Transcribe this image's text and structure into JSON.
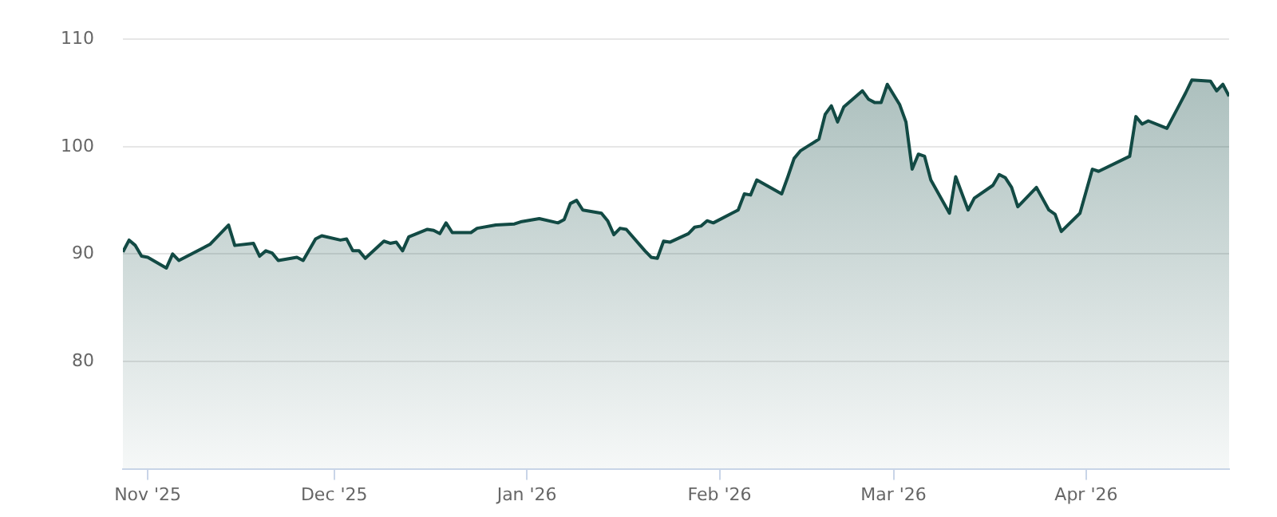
{
  "chart_data": {
    "type": "area",
    "x": [
      "2025-10-28",
      "2025-10-29",
      "2025-10-30",
      "2025-10-31",
      "2025-11-01",
      "2025-11-04",
      "2025-11-05",
      "2025-11-06",
      "2025-11-07",
      "2025-11-11",
      "2025-11-14",
      "2025-11-15",
      "2025-11-18",
      "2025-11-19",
      "2025-11-20",
      "2025-11-21",
      "2025-11-22",
      "2025-11-25",
      "2025-11-26",
      "2025-11-28",
      "2025-11-29",
      "2025-12-02",
      "2025-12-03",
      "2025-12-04",
      "2025-12-05",
      "2025-12-06",
      "2025-12-09",
      "2025-12-10",
      "2025-12-11",
      "2025-12-12",
      "2025-12-13",
      "2025-12-16",
      "2025-12-17",
      "2025-12-18",
      "2025-12-19",
      "2025-12-20",
      "2025-12-23",
      "2025-12-24",
      "2025-12-27",
      "2025-12-30",
      "2025-12-31",
      "2026-01-03",
      "2026-01-06",
      "2026-01-07",
      "2026-01-08",
      "2026-01-09",
      "2026-01-10",
      "2026-01-13",
      "2026-01-14",
      "2026-01-15",
      "2026-01-16",
      "2026-01-17",
      "2026-01-20",
      "2026-01-21",
      "2026-01-22",
      "2026-01-23",
      "2026-01-24",
      "2026-01-27",
      "2026-01-28",
      "2026-01-29",
      "2026-01-30",
      "2026-01-31",
      "2026-02-03",
      "2026-02-04",
      "2026-02-05",
      "2026-02-06",
      "2026-02-07",
      "2026-02-11",
      "2026-02-12",
      "2026-02-13",
      "2026-02-14",
      "2026-02-17",
      "2026-02-18",
      "2026-02-19",
      "2026-02-20",
      "2026-02-21",
      "2026-02-24",
      "2026-02-25",
      "2026-02-26",
      "2026-02-27",
      "2026-02-28",
      "2026-03-02",
      "2026-03-03",
      "2026-03-04",
      "2026-03-05",
      "2026-03-06",
      "2026-03-07",
      "2026-03-10",
      "2026-03-11",
      "2026-03-13",
      "2026-03-14",
      "2026-03-17",
      "2026-03-18",
      "2026-03-19",
      "2026-03-20",
      "2026-03-21",
      "2026-03-24",
      "2026-03-26",
      "2026-03-27",
      "2026-03-28",
      "2026-03-31",
      "2026-04-02",
      "2026-04-03",
      "2026-04-08",
      "2026-04-09",
      "2026-04-10",
      "2026-04-11",
      "2026-04-14",
      "2026-04-16",
      "2026-04-17",
      "2026-04-18",
      "2026-04-21",
      "2026-04-22",
      "2026-04-23",
      "2026-04-24"
    ],
    "series": [
      {
        "color": "#124a44",
        "values": [
          90.2,
          91.3,
          90.8,
          89.8,
          89.7,
          88.7,
          90.0,
          89.4,
          89.7,
          90.9,
          92.7,
          90.8,
          91.0,
          89.8,
          90.3,
          90.1,
          89.4,
          89.7,
          89.4,
          91.4,
          91.7,
          91.3,
          91.4,
          90.3,
          90.3,
          89.6,
          91.2,
          91.0,
          91.1,
          90.3,
          91.6,
          92.3,
          92.2,
          91.9,
          92.9,
          92.0,
          92.0,
          92.4,
          92.7,
          92.8,
          93.0,
          93.3,
          92.9,
          93.2,
          94.7,
          95.0,
          94.1,
          93.8,
          93.1,
          91.8,
          92.4,
          92.3,
          90.3,
          89.7,
          89.6,
          91.2,
          91.1,
          91.9,
          92.5,
          92.6,
          93.1,
          92.9,
          93.8,
          94.1,
          95.6,
          95.5,
          96.9,
          95.6,
          97.2,
          98.9,
          99.6,
          100.7,
          103.0,
          103.8,
          102.3,
          103.7,
          105.2,
          104.4,
          104.1,
          104.1,
          105.8,
          103.9,
          102.3,
          97.9,
          99.3,
          99.1,
          96.9,
          93.8,
          97.2,
          94.1,
          95.2,
          96.4,
          97.4,
          97.1,
          96.2,
          94.4,
          96.2,
          94.1,
          93.7,
          92.1,
          93.8,
          97.9,
          97.7,
          99.1,
          102.8,
          102.1,
          102.4,
          101.7,
          103.9,
          105.0,
          106.2,
          106.1,
          105.2,
          105.8,
          104.7
        ]
      }
    ],
    "xlim": [
      "2025-10-28",
      "2026-04-24"
    ],
    "xticks": [
      {
        "value": "2025-11-01",
        "label": "Nov '25"
      },
      {
        "value": "2025-12-01",
        "label": "Dec '25"
      },
      {
        "value": "2026-01-01",
        "label": "Jan '26"
      },
      {
        "value": "2026-02-01",
        "label": "Feb '26"
      },
      {
        "value": "2026-03-01",
        "label": "Mar '26"
      },
      {
        "value": "2026-04-01",
        "label": "Apr '26"
      }
    ],
    "ylim": [
      70,
      110
    ],
    "yticks": [
      {
        "value": 70,
        "label": null
      },
      80,
      90,
      100,
      110
    ],
    "grid": "y",
    "marker": "none",
    "line_style": "solid"
  }
}
